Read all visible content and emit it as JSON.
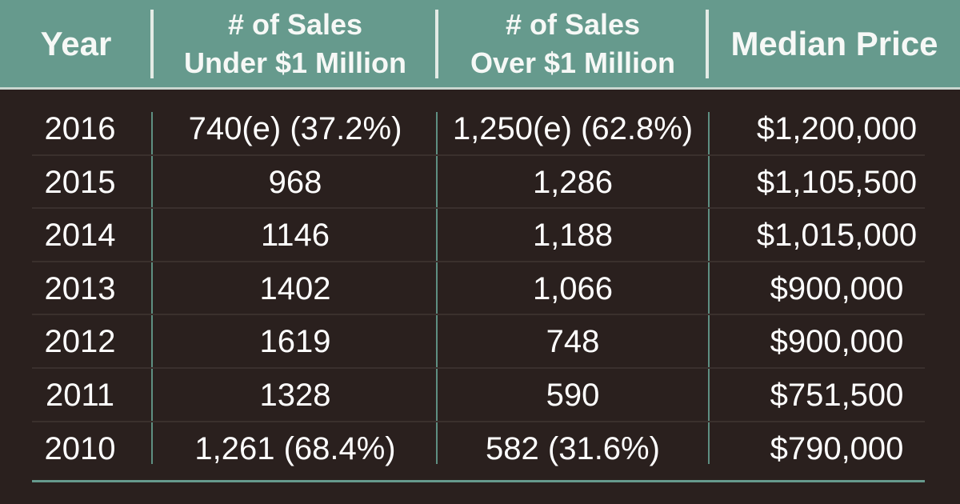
{
  "chart_data": {
    "type": "table",
    "columns": [
      [
        "Year"
      ],
      [
        "# of Sales",
        "Under $1 Million"
      ],
      [
        "# of Sales",
        "Over $1 Million"
      ],
      [
        "Median Price"
      ]
    ],
    "rows": [
      [
        "2016",
        "740(e) (37.2%)",
        "1,250(e) (62.8%)",
        "$1,200,000"
      ],
      [
        "2015",
        "968",
        "1,286",
        "$1,105,500"
      ],
      [
        "2014",
        "1146",
        "1,188",
        "$1,015,000"
      ],
      [
        "2013",
        "1402",
        "1,066",
        "$900,000"
      ],
      [
        "2012",
        "1619",
        "748",
        "$900,000"
      ],
      [
        "2011",
        "1328",
        "590",
        "$751,500"
      ],
      [
        "2010",
        "1,261 (68.4%)",
        "582 (31.6%)",
        "$790,000"
      ]
    ]
  },
  "colors": {
    "header_bg": "#669a8d",
    "body_bg": "#2a201e",
    "text": "#ffffff",
    "divider_accent": "#669a8d"
  }
}
